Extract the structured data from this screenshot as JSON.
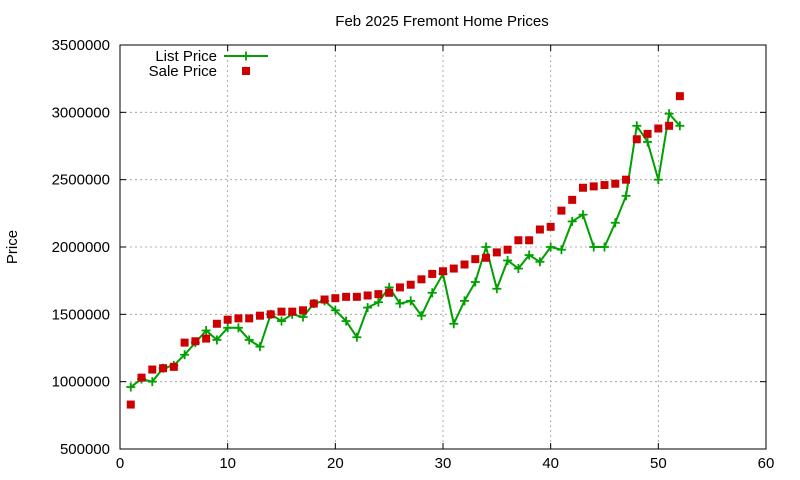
{
  "chart_data": {
    "type": "line",
    "title": "Feb 2025 Fremont Home Prices",
    "xlabel": "",
    "ylabel": "Price",
    "xlim": [
      0,
      60
    ],
    "ylim": [
      500000,
      3500000
    ],
    "xticks": [
      "0",
      "10",
      "20",
      "30",
      "40",
      "50",
      "60"
    ],
    "yticks": [
      "500000",
      "1000000",
      "1500000",
      "2000000",
      "2500000",
      "3000000",
      "3500000"
    ],
    "grid": true,
    "legend_position": "top-left",
    "series": [
      {
        "name": "List Price",
        "color": "#00a000",
        "marker": "plus",
        "line": true,
        "x": [
          1,
          2,
          3,
          4,
          5,
          6,
          7,
          8,
          9,
          10,
          11,
          12,
          13,
          14,
          15,
          16,
          17,
          18,
          19,
          20,
          21,
          22,
          23,
          24,
          25,
          26,
          27,
          28,
          29,
          30,
          31,
          32,
          33,
          34,
          35,
          36,
          37,
          38,
          39,
          40,
          41,
          42,
          43,
          44,
          45,
          46,
          47,
          48,
          49,
          50,
          51,
          52
        ],
        "y": [
          960000,
          1020000,
          1000000,
          1100000,
          1120000,
          1200000,
          1290000,
          1380000,
          1310000,
          1400000,
          1400000,
          1310000,
          1260000,
          1500000,
          1450000,
          1500000,
          1480000,
          1580000,
          1600000,
          1530000,
          1450000,
          1330000,
          1550000,
          1590000,
          1700000,
          1580000,
          1600000,
          1490000,
          1660000,
          1800000,
          1430000,
          1600000,
          1740000,
          2000000,
          1690000,
          1900000,
          1840000,
          1940000,
          1890000,
          2000000,
          1980000,
          2190000,
          2240000,
          2000000,
          2000000,
          2180000,
          2380000,
          2900000,
          2780000,
          2500000,
          2990000,
          2900000
        ]
      },
      {
        "name": "Sale Price",
        "color": "#cc0000",
        "marker": "square",
        "line": false,
        "x": [
          1,
          2,
          3,
          4,
          5,
          6,
          7,
          8,
          9,
          10,
          11,
          12,
          13,
          14,
          15,
          16,
          17,
          18,
          19,
          20,
          21,
          22,
          23,
          24,
          25,
          26,
          27,
          28,
          29,
          30,
          31,
          32,
          33,
          34,
          35,
          36,
          37,
          38,
          39,
          40,
          41,
          42,
          43,
          44,
          45,
          46,
          47,
          48,
          49,
          50,
          51,
          52
        ],
        "y": [
          830000,
          1030000,
          1090000,
          1100000,
          1110000,
          1290000,
          1300000,
          1320000,
          1430000,
          1460000,
          1470000,
          1470000,
          1490000,
          1500000,
          1520000,
          1520000,
          1530000,
          1580000,
          1610000,
          1620000,
          1630000,
          1630000,
          1640000,
          1650000,
          1660000,
          1700000,
          1720000,
          1760000,
          1800000,
          1820000,
          1840000,
          1870000,
          1910000,
          1920000,
          1960000,
          1980000,
          2050000,
          2050000,
          2130000,
          2150000,
          2270000,
          2350000,
          2440000,
          2450000,
          2460000,
          2470000,
          2500000,
          2800000,
          2840000,
          2880000,
          2900000,
          3120000
        ]
      }
    ]
  }
}
